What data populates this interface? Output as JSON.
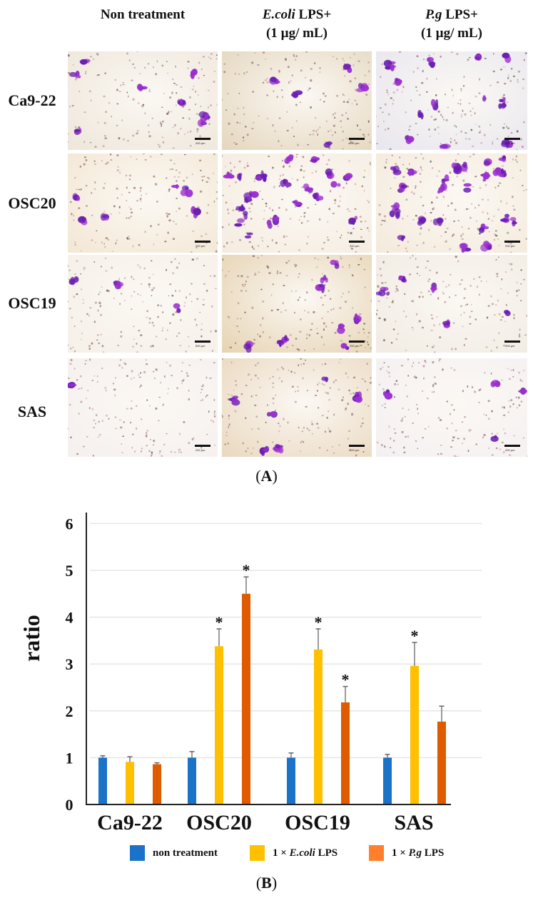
{
  "panel_a": {
    "columns": [
      {
        "line1_italic": "",
        "line1": "Non treatment",
        "line2": ""
      },
      {
        "line1_italic": "E.coli",
        "line1": " LPS+",
        "line2": "(1 µg/ mL)"
      },
      {
        "line1_italic": "P.g",
        "line1": " LPS+",
        "line2": "(1 µg/ mL)"
      }
    ],
    "rows": [
      "Ca9-22",
      "OSC20",
      "OSC19",
      "SAS"
    ],
    "scale_bar_text": "200 µm",
    "label_open": "(",
    "label_letter": "A",
    "label_close": ")",
    "panel_tints": [
      [
        "#eee6da",
        "#e4d6bd",
        "#e8e6ee"
      ],
      [
        "#f3e7d4",
        "#f5ece0",
        "#f4eadb"
      ],
      [
        "#f5f0e8",
        "#e6d3b2",
        "#f1ebe2"
      ],
      [
        "#f5f0ee",
        "#ead8bf",
        "#f4f0f2"
      ]
    ],
    "stain_density": [
      [
        8,
        5,
        12
      ],
      [
        6,
        22,
        24
      ],
      [
        3,
        9,
        6
      ],
      [
        1,
        6,
        4
      ]
    ]
  },
  "panel_b": {
    "label_open": "(",
    "label_letter": "B",
    "label_close": ")"
  },
  "chart_data": {
    "type": "bar",
    "title": "",
    "xlabel": "",
    "ylabel": "ratio",
    "ylim": [
      0,
      6
    ],
    "yticks": [
      0,
      1,
      2,
      3,
      4,
      5,
      6
    ],
    "grid": true,
    "legend_position": "bottom",
    "categories": [
      "Ca9-22",
      "OSC20",
      "OSC19",
      "SAS"
    ],
    "series": [
      {
        "name": "non treatment",
        "name_prefix": "",
        "name_italic": "",
        "name_suffix": "non treatment",
        "color": "#1a73c8",
        "legend_color": "#1a73c8",
        "values": [
          1.0,
          1.0,
          1.0,
          1.0
        ],
        "errors": [
          0.04,
          0.13,
          0.1,
          0.07
        ],
        "significant": [
          false,
          false,
          false,
          false
        ]
      },
      {
        "name": "1×E.coli LPS",
        "name_prefix": "1 × ",
        "name_italic": "E.coli",
        "name_suffix": " LPS",
        "color": "#ffc000",
        "legend_color": "#ffc000",
        "values": [
          0.91,
          3.38,
          3.31,
          2.96
        ],
        "errors": [
          0.11,
          0.37,
          0.44,
          0.5
        ],
        "significant": [
          false,
          true,
          true,
          true
        ]
      },
      {
        "name": "1×P.g LPS",
        "name_prefix": "1 × ",
        "name_italic": "P.g",
        "name_suffix": " LPS",
        "color": "#e05a00",
        "legend_color": "#ff7f2a",
        "values": [
          0.86,
          4.5,
          2.18,
          1.77
        ],
        "errors": [
          0.03,
          0.36,
          0.34,
          0.33
        ],
        "significant": [
          false,
          true,
          true,
          false
        ]
      }
    ],
    "significance_marker": "*",
    "colors": {
      "axis": "#222222",
      "grid": "#e6e6e6",
      "error_bar": "#666666"
    }
  }
}
